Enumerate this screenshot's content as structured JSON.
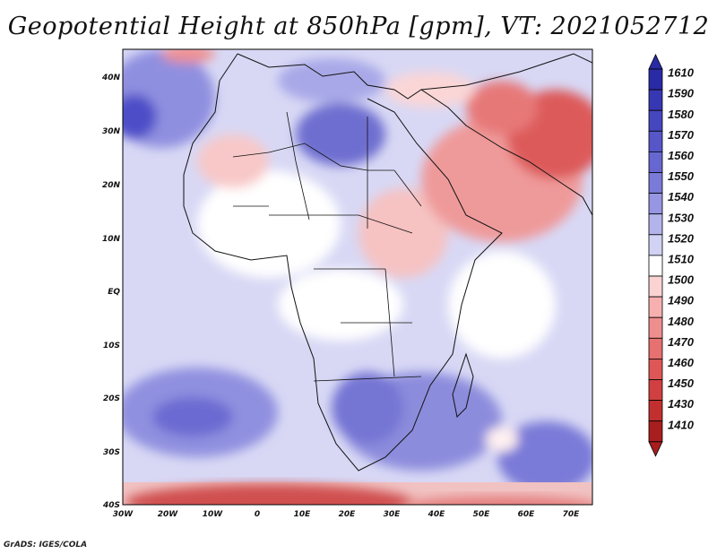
{
  "title": "Geopotential Height at 850hPa [gpm], VT: 2021052712",
  "credit": "GrADS: IGES/COLA",
  "map": {
    "lat_labels": [
      "40N",
      "30N",
      "20N",
      "10N",
      "EQ",
      "10S",
      "20S",
      "30S",
      "40S"
    ],
    "lon_labels": [
      "30W",
      "20W",
      "10W",
      "0",
      "10E",
      "20E",
      "30E",
      "40E",
      "50E",
      "60E",
      "70E"
    ],
    "lat_range": [
      -40,
      45
    ],
    "lon_range": [
      -30,
      75
    ]
  },
  "colorbar": {
    "levels": [
      "1610",
      "1590",
      "1580",
      "1570",
      "1560",
      "1550",
      "1540",
      "1530",
      "1520",
      "1510",
      "1500",
      "1490",
      "1480",
      "1470",
      "1460",
      "1450",
      "1430",
      "1410"
    ],
    "colors": [
      "#2a2aa6",
      "#3737b4",
      "#4646c0",
      "#5656c9",
      "#6767d2",
      "#7a7ad9",
      "#9696e2",
      "#b4b4ec",
      "#d2d2f4",
      "#ffffff",
      "#fbd3d3",
      "#f6b0b0",
      "#ef8e8e",
      "#e77070",
      "#de5656",
      "#d14040",
      "#c22f2f",
      "#a81e1e"
    ]
  }
}
